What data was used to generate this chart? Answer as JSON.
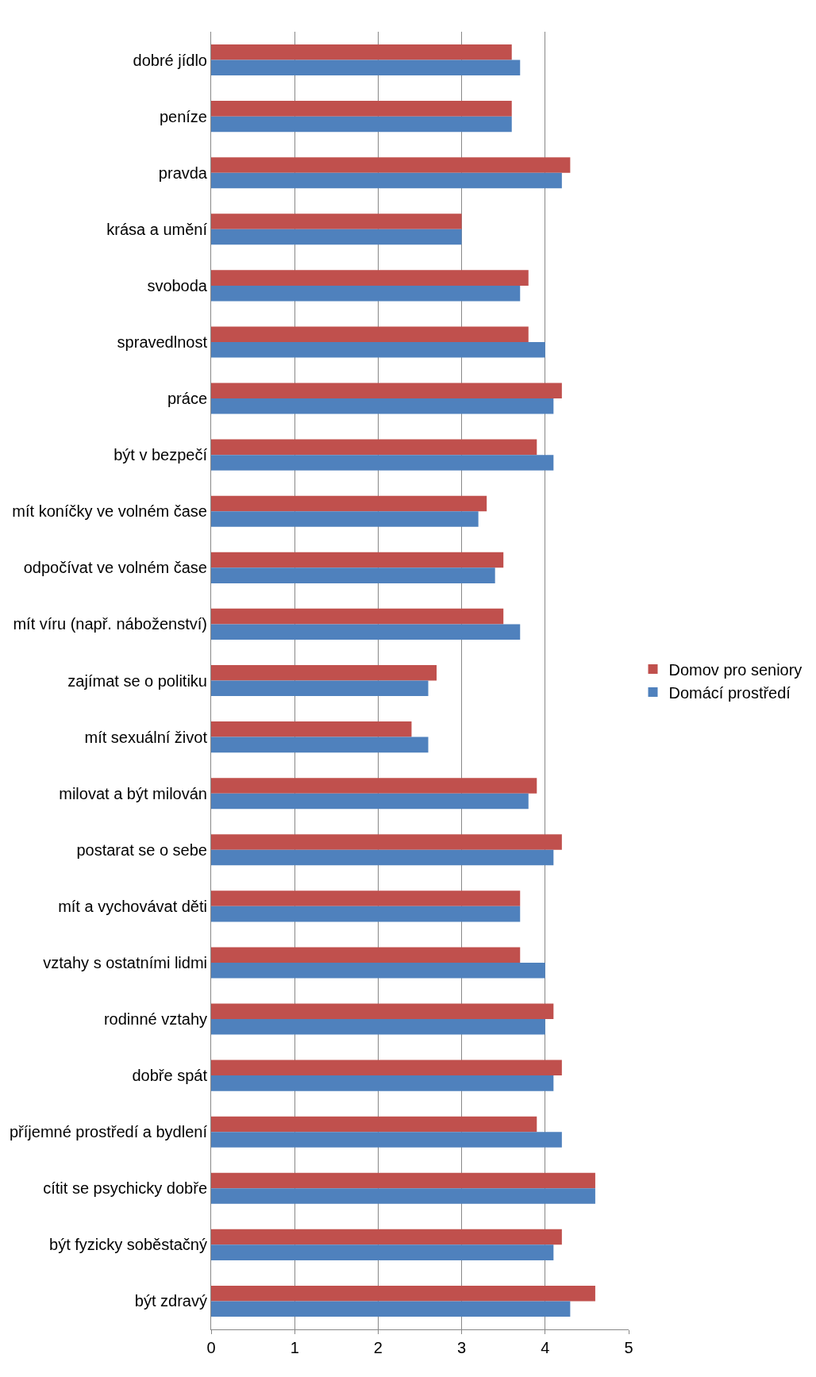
{
  "chart_data": {
    "type": "bar",
    "orientation": "horizontal",
    "categories": [
      "dobré jídlo",
      "peníze",
      "pravda",
      "krása a umění",
      "svoboda",
      "spravedlnost",
      "práce",
      "být v bezpečí",
      "mít koníčky ve volném čase",
      "odpočívat ve volném čase",
      "mít víru (např. náboženství)",
      "zajímat se o politiku",
      "mít sexuální život",
      "milovat a být milován",
      "postarat se o sebe",
      "mít a vychovávat děti",
      "vztahy s ostatními lidmi",
      "rodinné vztahy",
      "dobře spát",
      "příjemné prostředí a bydlení",
      "cítit se psychicky dobře",
      "být fyzicky soběstačný",
      "být zdravý"
    ],
    "series": [
      {
        "name": "Domov pro seniory",
        "color": "#c0504d",
        "values": [
          3.6,
          3.6,
          4.3,
          3.0,
          3.8,
          3.8,
          4.2,
          3.9,
          3.3,
          3.5,
          3.5,
          2.7,
          2.4,
          3.9,
          4.2,
          3.7,
          3.7,
          4.1,
          4.2,
          3.9,
          4.6,
          4.2,
          4.6
        ]
      },
      {
        "name": "Domácí prostředí",
        "color": "#4f81bd",
        "values": [
          3.7,
          3.6,
          4.2,
          3.0,
          3.7,
          4.0,
          4.1,
          4.1,
          3.2,
          3.4,
          3.7,
          2.6,
          2.6,
          3.8,
          4.1,
          3.7,
          4.0,
          4.0,
          4.1,
          4.2,
          4.6,
          4.1,
          4.3
        ]
      }
    ],
    "xlim": [
      0,
      5
    ],
    "xticks": [
      0,
      1,
      2,
      3,
      4,
      5
    ],
    "grid": "x",
    "legend": "right"
  }
}
